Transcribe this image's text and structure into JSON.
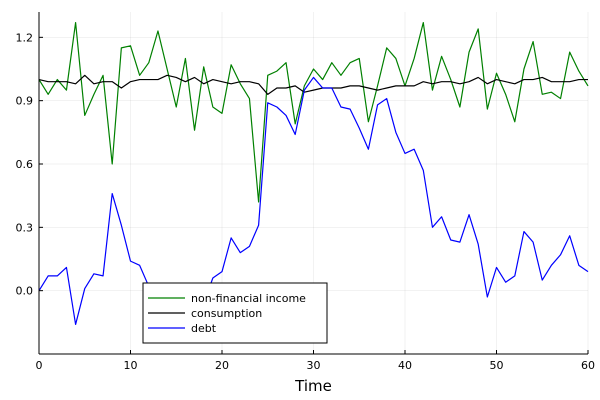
{
  "chart_data": {
    "type": "line",
    "title": "",
    "xlabel": "Time",
    "ylabel": "",
    "xlim": [
      0,
      60
    ],
    "ylim": [
      -0.3,
      1.32
    ],
    "x_ticks": [
      0,
      10,
      20,
      30,
      40,
      50,
      60
    ],
    "x_tick_labels": [
      "0",
      "10",
      "20",
      "30",
      "40",
      "50",
      "60"
    ],
    "y_ticks": [
      0.0,
      0.3,
      0.6,
      0.9,
      1.2
    ],
    "y_tick_labels": [
      "0.0",
      "0.3",
      "0.6",
      "0.9",
      "1.2"
    ],
    "grid": true,
    "legend_position": "bottom-left",
    "x": [
      0,
      1,
      2,
      3,
      4,
      5,
      6,
      7,
      8,
      9,
      10,
      11,
      12,
      13,
      14,
      15,
      16,
      17,
      18,
      19,
      20,
      21,
      22,
      23,
      24,
      25,
      26,
      27,
      28,
      29,
      30,
      31,
      32,
      33,
      34,
      35,
      36,
      37,
      38,
      39,
      40,
      41,
      42,
      43,
      44,
      45,
      46,
      47,
      48,
      49,
      50,
      51,
      52,
      53,
      54,
      55,
      56,
      57,
      58,
      59,
      60
    ],
    "series": [
      {
        "name": "non-financial income",
        "color": "#008000",
        "values": [
          1.0,
          0.93,
          1.0,
          0.95,
          1.27,
          0.83,
          0.93,
          1.02,
          0.6,
          1.15,
          1.16,
          1.02,
          1.08,
          1.23,
          1.05,
          0.87,
          1.1,
          0.76,
          1.06,
          0.87,
          0.84,
          1.07,
          0.98,
          0.91,
          0.42,
          1.02,
          1.04,
          1.08,
          0.79,
          0.97,
          1.05,
          1.0,
          1.08,
          1.02,
          1.08,
          1.1,
          0.8,
          0.97,
          1.15,
          1.1,
          0.97,
          1.1,
          1.27,
          0.95,
          1.11,
          1.0,
          0.87,
          1.13,
          1.24,
          0.86,
          1.03,
          0.93,
          0.8,
          1.05,
          1.18,
          0.93,
          0.94,
          0.91,
          1.13,
          1.04,
          0.97
        ]
      },
      {
        "name": "consumption",
        "color": "#000000",
        "values": [
          1.0,
          0.99,
          0.99,
          0.99,
          0.98,
          1.02,
          0.98,
          0.99,
          0.99,
          0.96,
          0.99,
          1.0,
          1.0,
          1.0,
          1.02,
          1.01,
          0.99,
          1.01,
          0.98,
          1.0,
          0.99,
          0.98,
          0.99,
          0.99,
          0.98,
          0.93,
          0.96,
          0.96,
          0.97,
          0.94,
          0.95,
          0.96,
          0.96,
          0.96,
          0.97,
          0.97,
          0.96,
          0.95,
          0.96,
          0.97,
          0.97,
          0.97,
          0.99,
          0.98,
          0.99,
          0.99,
          0.98,
          0.99,
          1.01,
          0.98,
          1.0,
          0.99,
          0.98,
          1.0,
          1.0,
          1.01,
          0.99,
          0.99,
          0.99,
          1.0,
          1.0
        ]
      },
      {
        "name": "debt",
        "color": "#0000ff",
        "values": [
          0.0,
          0.07,
          0.07,
          0.11,
          -0.16,
          0.01,
          0.08,
          0.07,
          0.46,
          0.31,
          0.14,
          0.12,
          0.02,
          -0.1,
          -0.24,
          -0.14,
          -0.1,
          -0.12,
          -0.06,
          0.06,
          0.09,
          0.25,
          0.18,
          0.21,
          0.31,
          0.89,
          0.87,
          0.83,
          0.74,
          0.95,
          1.01,
          0.96,
          0.96,
          0.87,
          0.86,
          0.77,
          0.67,
          0.88,
          0.91,
          0.75,
          0.65,
          0.67,
          0.57,
          0.3,
          0.35,
          0.24,
          0.23,
          0.36,
          0.22,
          -0.03,
          0.11,
          0.04,
          0.07,
          0.28,
          0.23,
          0.05,
          0.12,
          0.17,
          0.26,
          0.12,
          0.09
        ]
      }
    ]
  }
}
